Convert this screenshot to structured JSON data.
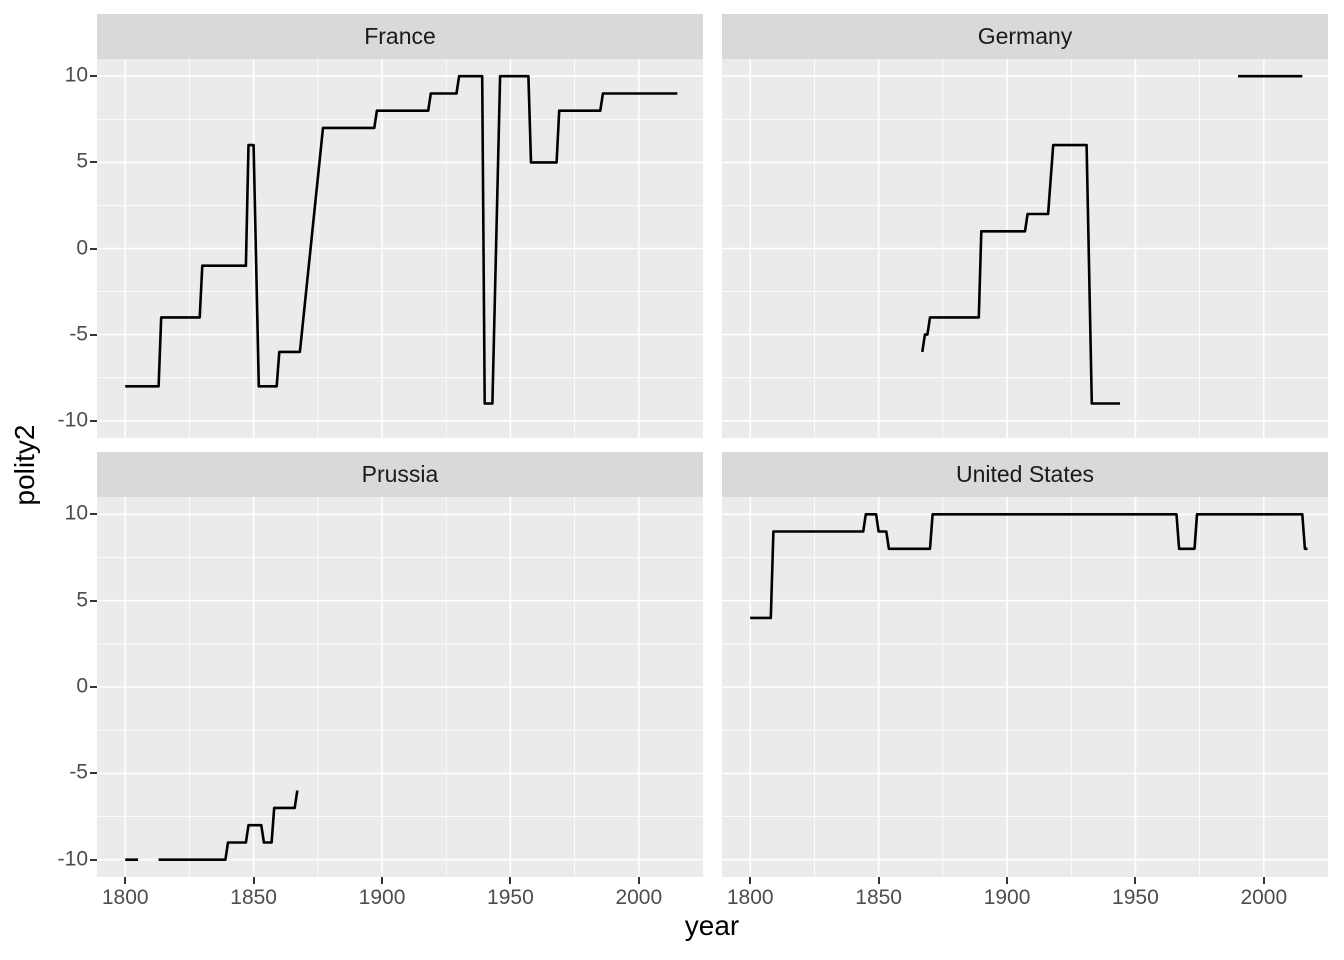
{
  "chart_data": {
    "type": "line",
    "title": "",
    "xlabel": "year",
    "ylabel": "polity2",
    "x_domain": [
      1789,
      2025
    ],
    "y_domain": [
      -11,
      11
    ],
    "x_ticks": [
      1800,
      1850,
      1900,
      1950,
      2000
    ],
    "x_minor_ticks": [
      1825,
      1875,
      1925,
      1975
    ],
    "y_ticks": [
      10,
      5,
      0,
      -5,
      -10
    ],
    "y_minor_ticks": [
      7.5,
      2.5,
      -2.5,
      -7.5
    ],
    "grid": true,
    "legend": "none",
    "facet_layout": "2x2",
    "colors": {
      "line": "#000000",
      "panel_bg": "#EBEBEB",
      "strip_bg": "#D9D9D9",
      "strip_text": "#1A1A1A",
      "grid": "#FFFFFF",
      "tick_label": "#4D4D4D",
      "tick_mark": "#333333",
      "axis_title": "#000000",
      "page_bg": "#FFFFFF"
    },
    "facets": [
      {
        "label": "France",
        "segments": [
          [
            [
              1800,
              -8
            ],
            [
              1813,
              -8
            ],
            [
              1814,
              -4
            ],
            [
              1829,
              -4
            ],
            [
              1830,
              -1
            ],
            [
              1847,
              -1
            ],
            [
              1848,
              6
            ],
            [
              1850,
              6
            ],
            [
              1852,
              -8
            ],
            [
              1859,
              -8
            ],
            [
              1860,
              -6
            ],
            [
              1868,
              -6
            ],
            [
              1877,
              7
            ],
            [
              1897,
              7
            ],
            [
              1898,
              8
            ],
            [
              1918,
              8
            ],
            [
              1919,
              9
            ],
            [
              1929,
              9
            ],
            [
              1930,
              10
            ],
            [
              1939,
              10
            ],
            [
              1940,
              -9
            ],
            [
              1943,
              -9
            ],
            [
              1946,
              10
            ],
            [
              1957,
              10
            ],
            [
              1958,
              5
            ],
            [
              1968,
              5
            ],
            [
              1969,
              8
            ],
            [
              1985,
              8
            ],
            [
              1986,
              9
            ],
            [
              2015,
              9
            ]
          ]
        ]
      },
      {
        "label": "Germany",
        "segments": [
          [
            [
              1867,
              -6
            ],
            [
              1868,
              -5
            ],
            [
              1869,
              -5
            ],
            [
              1870,
              -4
            ],
            [
              1889,
              -4
            ],
            [
              1890,
              1
            ],
            [
              1907,
              1
            ],
            [
              1908,
              2
            ],
            [
              1916,
              2
            ],
            [
              1918,
              6
            ],
            [
              1931,
              6
            ],
            [
              1933,
              -9
            ],
            [
              1944,
              -9
            ]
          ],
          [
            [
              1990,
              10
            ],
            [
              2015,
              10
            ]
          ]
        ]
      },
      {
        "label": "Prussia",
        "segments": [
          [
            [
              1800,
              -10
            ],
            [
              1805,
              -10
            ]
          ],
          [
            [
              1813,
              -10
            ],
            [
              1839,
              -10
            ],
            [
              1840,
              -9
            ],
            [
              1847,
              -9
            ],
            [
              1848,
              -8
            ],
            [
              1853,
              -8
            ],
            [
              1854,
              -9
            ],
            [
              1857,
              -9
            ],
            [
              1858,
              -7
            ],
            [
              1866,
              -7
            ],
            [
              1867,
              -6
            ]
          ]
        ]
      },
      {
        "label": "United States",
        "segments": [
          [
            [
              1800,
              4
            ],
            [
              1808,
              4
            ],
            [
              1809,
              9
            ],
            [
              1844,
              9
            ],
            [
              1845,
              10
            ],
            [
              1849,
              10
            ],
            [
              1850,
              9
            ],
            [
              1853,
              9
            ],
            [
              1854,
              8
            ],
            [
              1870,
              8
            ],
            [
              1871,
              10
            ],
            [
              1966,
              10
            ],
            [
              1967,
              8
            ],
            [
              1973,
              8
            ],
            [
              1974,
              10
            ],
            [
              2015,
              10
            ],
            [
              2016,
              8
            ],
            [
              2017,
              8
            ]
          ]
        ]
      }
    ]
  }
}
